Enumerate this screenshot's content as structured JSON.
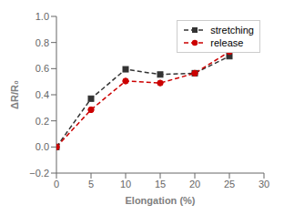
{
  "chart_data": {
    "type": "line",
    "x": [
      0,
      5,
      10,
      15,
      20,
      25
    ],
    "series": [
      {
        "name": "stretching",
        "color": "#333333",
        "values": [
          0.0,
          0.37,
          0.595,
          0.555,
          0.565,
          0.695
        ],
        "marker": "square",
        "line_style": "dashed"
      },
      {
        "name": "release",
        "color": "#cc0000",
        "values": [
          0.0,
          0.285,
          0.505,
          0.49,
          0.565,
          0.73
        ],
        "marker": "circle",
        "line_style": "dashed"
      }
    ],
    "xlabel": "Elongation (%)",
    "ylabel": "ΔR/R₀",
    "xlim": [
      0,
      30
    ],
    "ylim": [
      -0.2,
      1.0
    ],
    "xticks": [
      0,
      5,
      10,
      15,
      20,
      25,
      30
    ],
    "yticks": [
      {
        "value": -0.2,
        "label": "−0.2"
      },
      {
        "value": 0.0,
        "label": "0.0"
      },
      {
        "value": 0.2,
        "label": "0.2"
      },
      {
        "value": 0.4,
        "label": "0.4"
      },
      {
        "value": 0.6,
        "label": "0.6"
      },
      {
        "value": 0.8,
        "label": "0.8"
      },
      {
        "value": 1.0,
        "label": "1.0"
      }
    ],
    "grid": false,
    "legend": "upper right"
  }
}
